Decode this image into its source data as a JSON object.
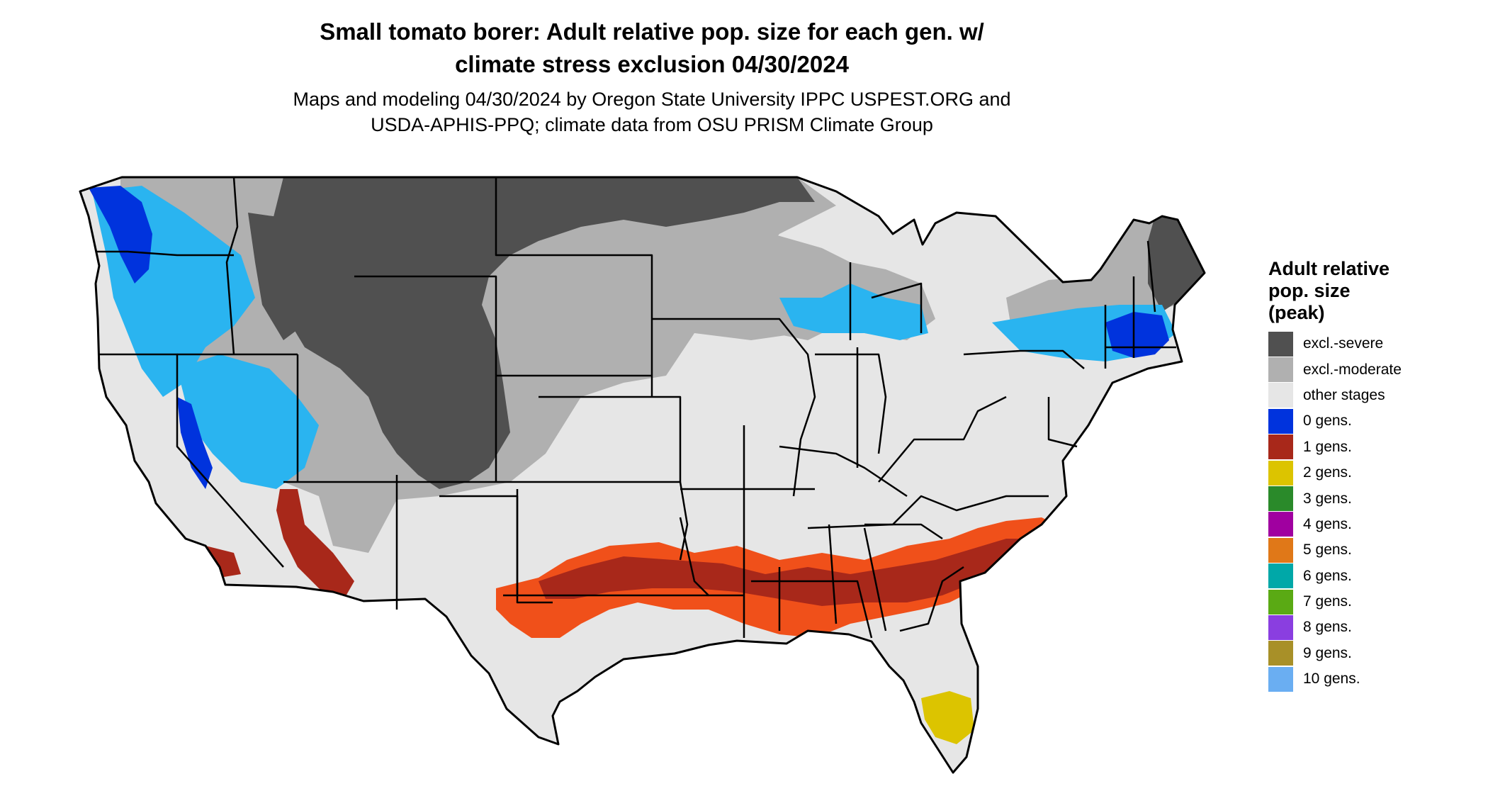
{
  "header": {
    "title_line1": "Small tomato borer: Adult relative pop. size for each gen. w/",
    "title_line2": "climate stress exclusion 04/30/2024",
    "subtitle_line1": "Maps and modeling 04/30/2024 by Oregon State University IPPC USPEST.ORG and",
    "subtitle_line2": "USDA-APHIS-PPQ; climate data from OSU PRISM Climate Group"
  },
  "legend": {
    "title_line1": "Adult relative",
    "title_line2": "pop. size",
    "title_line3": "(peak)",
    "items": [
      {
        "label": "excl.-severe",
        "color": "#505050"
      },
      {
        "label": "excl.-moderate",
        "color": "#b0b0b0"
      },
      {
        "label": "other stages",
        "color": "#e6e6e6"
      },
      {
        "label": "0 gens.",
        "color": "#0033dd"
      },
      {
        "label": "1 gens.",
        "color": "#a8281a"
      },
      {
        "label": "2 gens.",
        "color": "#dcc400"
      },
      {
        "label": "3 gens.",
        "color": "#2a8a2a"
      },
      {
        "label": "4 gens.",
        "color": "#a000a0"
      },
      {
        "label": "5 gens.",
        "color": "#e07818"
      },
      {
        "label": "6 gens.",
        "color": "#00a8a8"
      },
      {
        "label": "7 gens.",
        "color": "#5aaa14"
      },
      {
        "label": "8 gens.",
        "color": "#8a3ee0"
      },
      {
        "label": "9 gens.",
        "color": "#a89028"
      },
      {
        "label": "10 gens.",
        "color": "#6aaef2"
      }
    ]
  },
  "map_colors": {
    "land": "#e6e6e6",
    "severe": "#505050",
    "moderate": "#b0b0b0",
    "zero_gen": "#0033dd",
    "light_blue_band": "#2ab4f0",
    "one_gen_dark": "#a8281a",
    "one_gen_bright": "#f0501a",
    "two_gen": "#dcc400",
    "border": "#000000"
  }
}
